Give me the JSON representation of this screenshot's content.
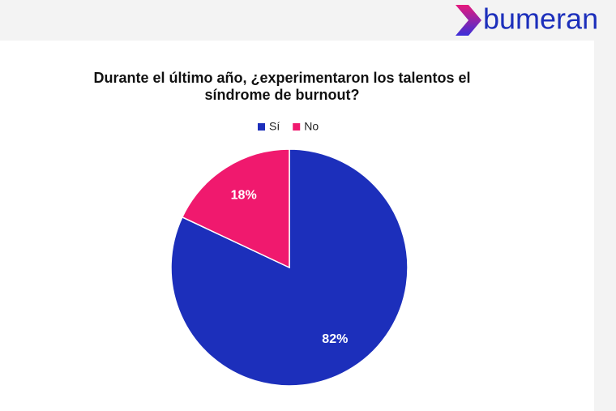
{
  "brand": "bumeran",
  "chart_data": {
    "type": "pie",
    "title": [
      "Durante el último año, ¿experimentaron los talentos el",
      "síndrome de burnout?"
    ],
    "categories": [
      "Sí",
      "No"
    ],
    "values": [
      82,
      18
    ],
    "value_labels": [
      "82%",
      "18%"
    ],
    "colors": [
      "#1c2fbb",
      "#f0196e"
    ],
    "legend": "top"
  }
}
